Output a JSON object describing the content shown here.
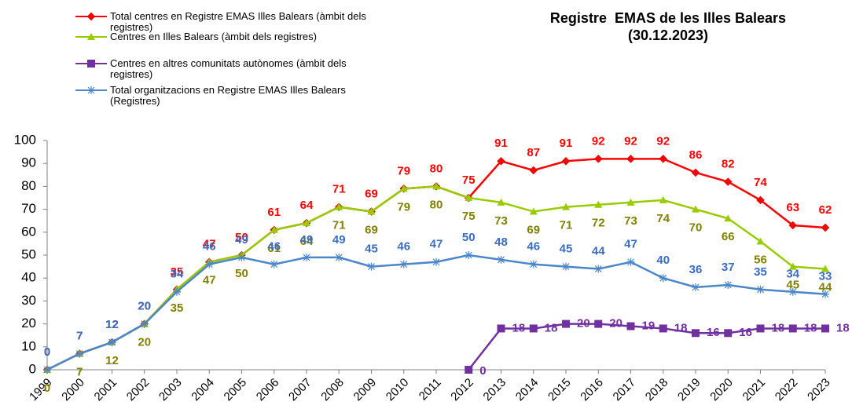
{
  "chart_data": {
    "type": "line",
    "title": "Registre  EMAS de les Illes Balears",
    "subtitle": "(30.12.2023)",
    "categories": [
      "1999",
      "2000",
      "2001",
      "2002",
      "2003",
      "2004",
      "2005",
      "2006",
      "2007",
      "2008",
      "2009",
      "2010",
      "2011",
      "2012",
      "2013",
      "2014",
      "2015",
      "2016",
      "2017",
      "2018",
      "2019",
      "2020",
      "2021",
      "2022",
      "2023"
    ],
    "ylim": [
      0,
      100
    ],
    "yticks": [
      0,
      10,
      20,
      30,
      40,
      50,
      60,
      70,
      80,
      90,
      100
    ],
    "grid": false,
    "series": [
      {
        "name": "Total centres en Registre EMAS Illes Balears (àmbit dels registres)",
        "color": "#ff0000",
        "label_color": "#ff0000",
        "marker": "diamond",
        "values": [
          0,
          7,
          12,
          20,
          35,
          47,
          50,
          61,
          64,
          71,
          69,
          79,
          80,
          75,
          91,
          87,
          91,
          92,
          92,
          92,
          86,
          82,
          74,
          63,
          62
        ]
      },
      {
        "name": "Centres en Illes Balears (àmbit dels registres)",
        "color": "#99cc00",
        "label_color": "#808000",
        "marker": "triangle",
        "values": [
          0,
          7,
          12,
          20,
          35,
          47,
          50,
          61,
          64,
          71,
          69,
          79,
          80,
          75,
          73,
          69,
          71,
          72,
          73,
          74,
          70,
          66,
          56,
          45,
          44
        ]
      },
      {
        "name": "Centres en altres comunitats autònomes (àmbit dels registres)",
        "color": "#7030a0",
        "label_color": "#7030a0",
        "marker": "square",
        "values": [
          null,
          null,
          null,
          null,
          null,
          null,
          null,
          null,
          null,
          null,
          null,
          null,
          null,
          0,
          18,
          18,
          20,
          20,
          19,
          18,
          16,
          16,
          18,
          18,
          18
        ]
      },
      {
        "name": "Total organitzacions en Registre EMAS Illes Balears (Registres)",
        "color": "#4a86c8",
        "label_color": "#3a6cc0",
        "marker": "star",
        "values": [
          0,
          7,
          12,
          20,
          34,
          46,
          49,
          46,
          49,
          49,
          45,
          46,
          47,
          50,
          48,
          46,
          45,
          44,
          47,
          40,
          36,
          37,
          35,
          34,
          33
        ]
      }
    ]
  }
}
